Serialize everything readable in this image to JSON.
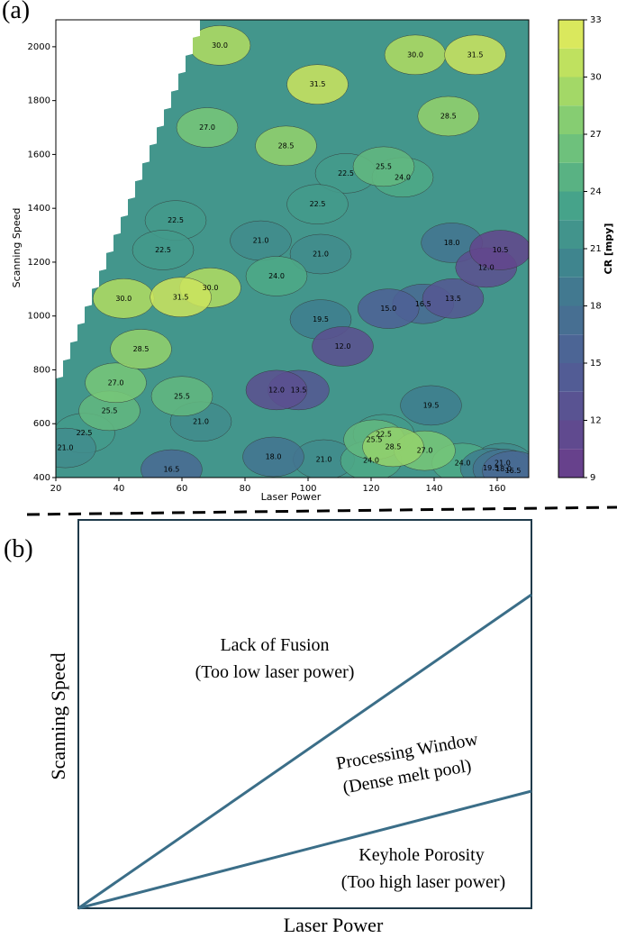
{
  "chart_data": {
    "type": "contour",
    "panel_label": "(a)",
    "x_label": "Laser Power",
    "y_label": "Scanning Speed",
    "colorbar_label": "CR [mpy]",
    "xlim": [
      20,
      170
    ],
    "xticks": [
      20,
      40,
      60,
      80,
      100,
      120,
      140,
      160
    ],
    "ylim": [
      400,
      2100
    ],
    "yticks": [
      400,
      600,
      800,
      1000,
      1200,
      1400,
      1600,
      1800,
      2000
    ],
    "clim": [
      9,
      33
    ],
    "cticks": [
      9,
      12,
      15,
      18,
      21,
      24,
      27,
      30,
      33
    ],
    "contour_labels": {
      "x": [
        72,
        134,
        153,
        103,
        144.5,
        68,
        93,
        124,
        130,
        112,
        103,
        58,
        54,
        85,
        104,
        145.6,
        161,
        156.5,
        136.5,
        146,
        125.5,
        90,
        41.5,
        59.6,
        69,
        47,
        104,
        111,
        39,
        37,
        29,
        23,
        90,
        97,
        60,
        66,
        139,
        89,
        105,
        120,
        124,
        121,
        127,
        137,
        149,
        56.7,
        161.7,
        158,
        162,
        165
      ],
      "y": [
        2005,
        1970,
        1970,
        1860,
        1742,
        1700,
        1632,
        1555,
        1515,
        1530,
        1415,
        1355,
        1245,
        1280,
        1230,
        1272,
        1245,
        1180,
        1045,
        1065,
        1027,
        1148,
        1065,
        1070,
        1105,
        877,
        987,
        887,
        752,
        648,
        565,
        510,
        725,
        725,
        702,
        608,
        668,
        477,
        467,
        463,
        561,
        541,
        514,
        500,
        454,
        430,
        454,
        435,
        432,
        425
      ],
      "values": [
        30,
        30,
        31.5,
        31.5,
        28.5,
        27,
        28.5,
        25.5,
        24,
        22.5,
        22.5,
        22.5,
        22.5,
        21,
        21,
        18,
        10.5,
        12,
        16.5,
        13.5,
        15,
        24,
        30,
        31.5,
        30,
        28.5,
        19.5,
        12,
        27,
        25.5,
        22.5,
        21,
        12,
        13.5,
        25.5,
        21,
        19.5,
        18,
        21,
        24,
        22.5,
        25.5,
        28.5,
        27,
        24,
        16.5,
        21,
        19.5,
        18,
        16.5
      ],
      "value_labels": [
        "30.0",
        "30.0",
        "31.5",
        "31.5",
        "28.5",
        "27.0",
        "28.5",
        "25.5",
        "24.0",
        "22.5",
        "22.5",
        "22.5",
        "22.5",
        "21.0",
        "21.0",
        "18.0",
        "10.5",
        "12.0",
        "16.5",
        "13.5",
        "15.0",
        "24.0",
        "30.0",
        "31.5",
        "30.0",
        "28.5",
        "19.5",
        "12.0",
        "27.0",
        "25.5",
        "22.5",
        "21.0",
        "12.0",
        "13.5",
        "25.5",
        "21.0",
        "19.5",
        "18.0",
        "21.0",
        "24.0",
        "22.5",
        "25.5",
        "28.5",
        "27.0",
        "24.0",
        "16.5",
        "21.0",
        "19.5",
        "18.0",
        "16.5"
      ]
    }
  },
  "diagram": {
    "panel_label": "(b)",
    "x_label": "Laser Power",
    "y_label": "Scanning Speed",
    "regions": [
      {
        "title": "Lack of Fusion",
        "subtitle": "(Too low laser power)"
      },
      {
        "title": "Processing Window",
        "subtitle": "(Dense melt pool)"
      },
      {
        "title": "Keyhole Porosity",
        "subtitle": "(Too high laser power)"
      }
    ]
  }
}
